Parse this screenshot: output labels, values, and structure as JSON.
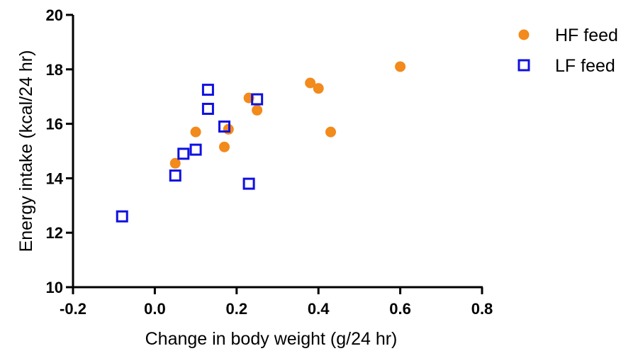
{
  "chart_data": {
    "type": "scatter",
    "xlabel": "Change in body weight (g/24 hr)",
    "ylabel": "Energy intake (kcal/24 hr)",
    "xlim": [
      -0.2,
      0.8
    ],
    "ylim": [
      10,
      20
    ],
    "xticks": [
      "-0.2",
      "0.0",
      "0.2",
      "0.4",
      "0.6",
      "0.8"
    ],
    "xtick_values": [
      -0.2,
      0.0,
      0.2,
      0.4,
      0.6,
      0.8
    ],
    "yticks": [
      "10",
      "12",
      "14",
      "16",
      "18",
      "20"
    ],
    "ytick_values": [
      10,
      12,
      14,
      16,
      18,
      20
    ],
    "grid": false,
    "legend_position": "top-right",
    "series": [
      {
        "name": "HF feed",
        "marker": "filled-circle",
        "color": "#f28a1c",
        "points": [
          {
            "x": 0.05,
            "y": 14.55
          },
          {
            "x": 0.1,
            "y": 15.7
          },
          {
            "x": 0.17,
            "y": 15.15
          },
          {
            "x": 0.18,
            "y": 15.8
          },
          {
            "x": 0.23,
            "y": 16.95
          },
          {
            "x": 0.25,
            "y": 16.5
          },
          {
            "x": 0.38,
            "y": 17.5
          },
          {
            "x": 0.4,
            "y": 17.3
          },
          {
            "x": 0.43,
            "y": 15.7
          },
          {
            "x": 0.6,
            "y": 18.1
          }
        ]
      },
      {
        "name": "LF feed",
        "marker": "open-square",
        "color": "#1010e0",
        "points": [
          {
            "x": -0.08,
            "y": 12.6
          },
          {
            "x": 0.05,
            "y": 14.1
          },
          {
            "x": 0.07,
            "y": 14.9
          },
          {
            "x": 0.1,
            "y": 15.05
          },
          {
            "x": 0.13,
            "y": 17.25
          },
          {
            "x": 0.13,
            "y": 16.55
          },
          {
            "x": 0.17,
            "y": 15.9
          },
          {
            "x": 0.23,
            "y": 13.8
          },
          {
            "x": 0.25,
            "y": 16.9
          }
        ]
      }
    ]
  }
}
